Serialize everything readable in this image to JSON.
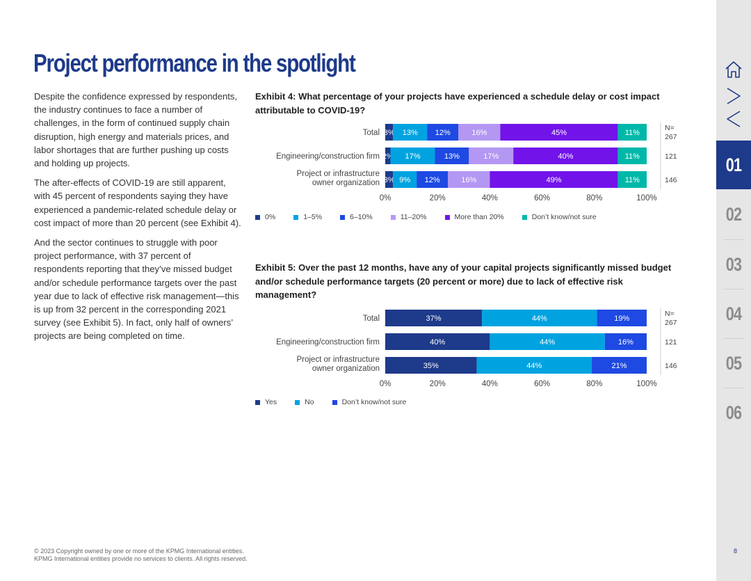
{
  "title": "Project performance in the spotlight",
  "body_paragraphs": [
    "Despite the confidence expressed by respondents, the industry continues to face a number of challenges, in the form of continued supply chain disruption, high energy and materials prices, and labor shortages that are further pushing up costs and holding up projects.",
    "The after-effects of COVID-19 are still apparent, with 45 percent of respondents saying they have experienced a pandemic-related schedule delay or cost impact of more than 20 percent (see Exhibit 4).",
    "And the sector continues to struggle with poor project performance, with 37 percent of respondents reporting that they’ve missed budget and/or schedule performance targets over the past year due to lack of effective risk management—this is up from 32 percent in the corresponding 2021 survey (see Exhibit 5). In fact, only half of owners’ projects are being completed on time."
  ],
  "chart_data": [
    {
      "type": "bar",
      "orientation": "horizontal",
      "stacked": true,
      "title": "Exhibit 4: What percentage of your projects have experienced a schedule delay or cost impact attributable to COVID-19?",
      "categories": [
        "Total",
        "Engineering/construction firm",
        "Project or infrastructure owner organization"
      ],
      "category_lines": [
        [
          "Total"
        ],
        [
          "Engineering/construction firm"
        ],
        [
          "Project or infrastructure",
          "owner organization"
        ]
      ],
      "n_header": "N=",
      "n_values": [
        "267",
        "121",
        "146"
      ],
      "x_ticks": [
        "0%",
        "20%",
        "40%",
        "60%",
        "80%",
        "100%"
      ],
      "xlim": [
        0,
        100
      ],
      "legend_position": "bottom-left",
      "series": [
        {
          "name": "0%",
          "color": "#1e3a8a",
          "label_color": "#ffffff",
          "values": [
            3,
            2,
            3
          ]
        },
        {
          "name": "1–5%",
          "color": "#00a3e0",
          "label_color": "#ffffff",
          "values": [
            13,
            17,
            9
          ]
        },
        {
          "name": "6–10%",
          "color": "#1e49e2",
          "label_color": "#ffffff",
          "values": [
            12,
            13,
            12
          ]
        },
        {
          "name": "11–20%",
          "color": "#b497f3",
          "label_color": "#ffffff",
          "values": [
            16,
            17,
            16
          ]
        },
        {
          "name": "More than 20%",
          "color": "#7213ea",
          "label_color": "#ffffff",
          "values": [
            45,
            40,
            49
          ]
        },
        {
          "name": "Don’t know/not sure",
          "color": "#00b8a9",
          "label_color": "#ffffff",
          "values": [
            11,
            11,
            11
          ]
        }
      ]
    },
    {
      "type": "bar",
      "orientation": "horizontal",
      "stacked": true,
      "title": "Exhibit 5: Over the past 12 months, have any of your capital projects significantly missed budget and/or schedule performance targets (20 percent or more) due to lack of effective risk management?",
      "categories": [
        "Total",
        "Engineering/construction firm",
        "Project or infrastructure owner organization"
      ],
      "category_lines": [
        [
          "Total"
        ],
        [
          "Engineering/construction firm"
        ],
        [
          "Project or infrastructure",
          "owner organization"
        ]
      ],
      "n_header": "N=",
      "n_values": [
        "267",
        "121",
        "146"
      ],
      "x_ticks": [
        "0%",
        "20%",
        "40%",
        "60%",
        "80%",
        "100%"
      ],
      "xlim": [
        0,
        100
      ],
      "legend_position": "bottom-left",
      "series": [
        {
          "name": "Yes",
          "color": "#1e3a8a",
          "label_color": "#ffffff",
          "values": [
            37,
            40,
            35
          ]
        },
        {
          "name": "No",
          "color": "#00a3e0",
          "label_color": "#ffffff",
          "values": [
            44,
            44,
            44
          ]
        },
        {
          "name": "Don’t know/not sure",
          "color": "#1e49e2",
          "label_color": "#ffffff",
          "values": [
            19,
            16,
            21
          ]
        }
      ]
    }
  ],
  "nav": {
    "icons": [
      "home-icon",
      "chevron-right-icon",
      "chevron-left-icon"
    ],
    "sections": [
      "01",
      "02",
      "03",
      "04",
      "05",
      "06"
    ],
    "active": "01",
    "active_color": "#1e3a8a"
  },
  "page_number": "8",
  "footer": {
    "line1": "© 2023 Copyright owned by one or more of the KPMG International entities.",
    "line2": "KPMG International entities provide no services to clients. All rights reserved."
  }
}
